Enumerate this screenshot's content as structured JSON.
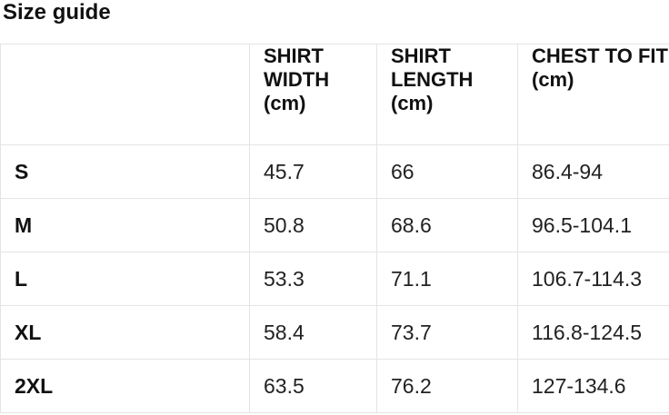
{
  "page": {
    "title": "Size guide"
  },
  "size_table": {
    "headers": {
      "size": "",
      "shirt_width": "SHIRT\nWIDTH\n(cm)",
      "shirt_length": "SHIRT\nLENGTH\n(cm)",
      "chest_to_fit": "CHEST TO FIT\n(cm)"
    },
    "rows": [
      {
        "size": "S",
        "shirt_width": "45.7",
        "shirt_length": "66",
        "chest_to_fit": "86.4-94"
      },
      {
        "size": "M",
        "shirt_width": "50.8",
        "shirt_length": "68.6",
        "chest_to_fit": "96.5-104.1"
      },
      {
        "size": "L",
        "shirt_width": "53.3",
        "shirt_length": "71.1",
        "chest_to_fit": "106.7-114.3"
      },
      {
        "size": "XL",
        "shirt_width": "58.4",
        "shirt_length": "73.7",
        "chest_to_fit": "116.8-124.5"
      },
      {
        "size": "2XL",
        "shirt_width": "63.5",
        "shirt_length": "76.2",
        "chest_to_fit": "127-134.6"
      }
    ],
    "colors": {
      "border": "#e4e4e4",
      "heading_text": "#111111",
      "value_text": "#222222",
      "background": "#ffffff"
    }
  }
}
